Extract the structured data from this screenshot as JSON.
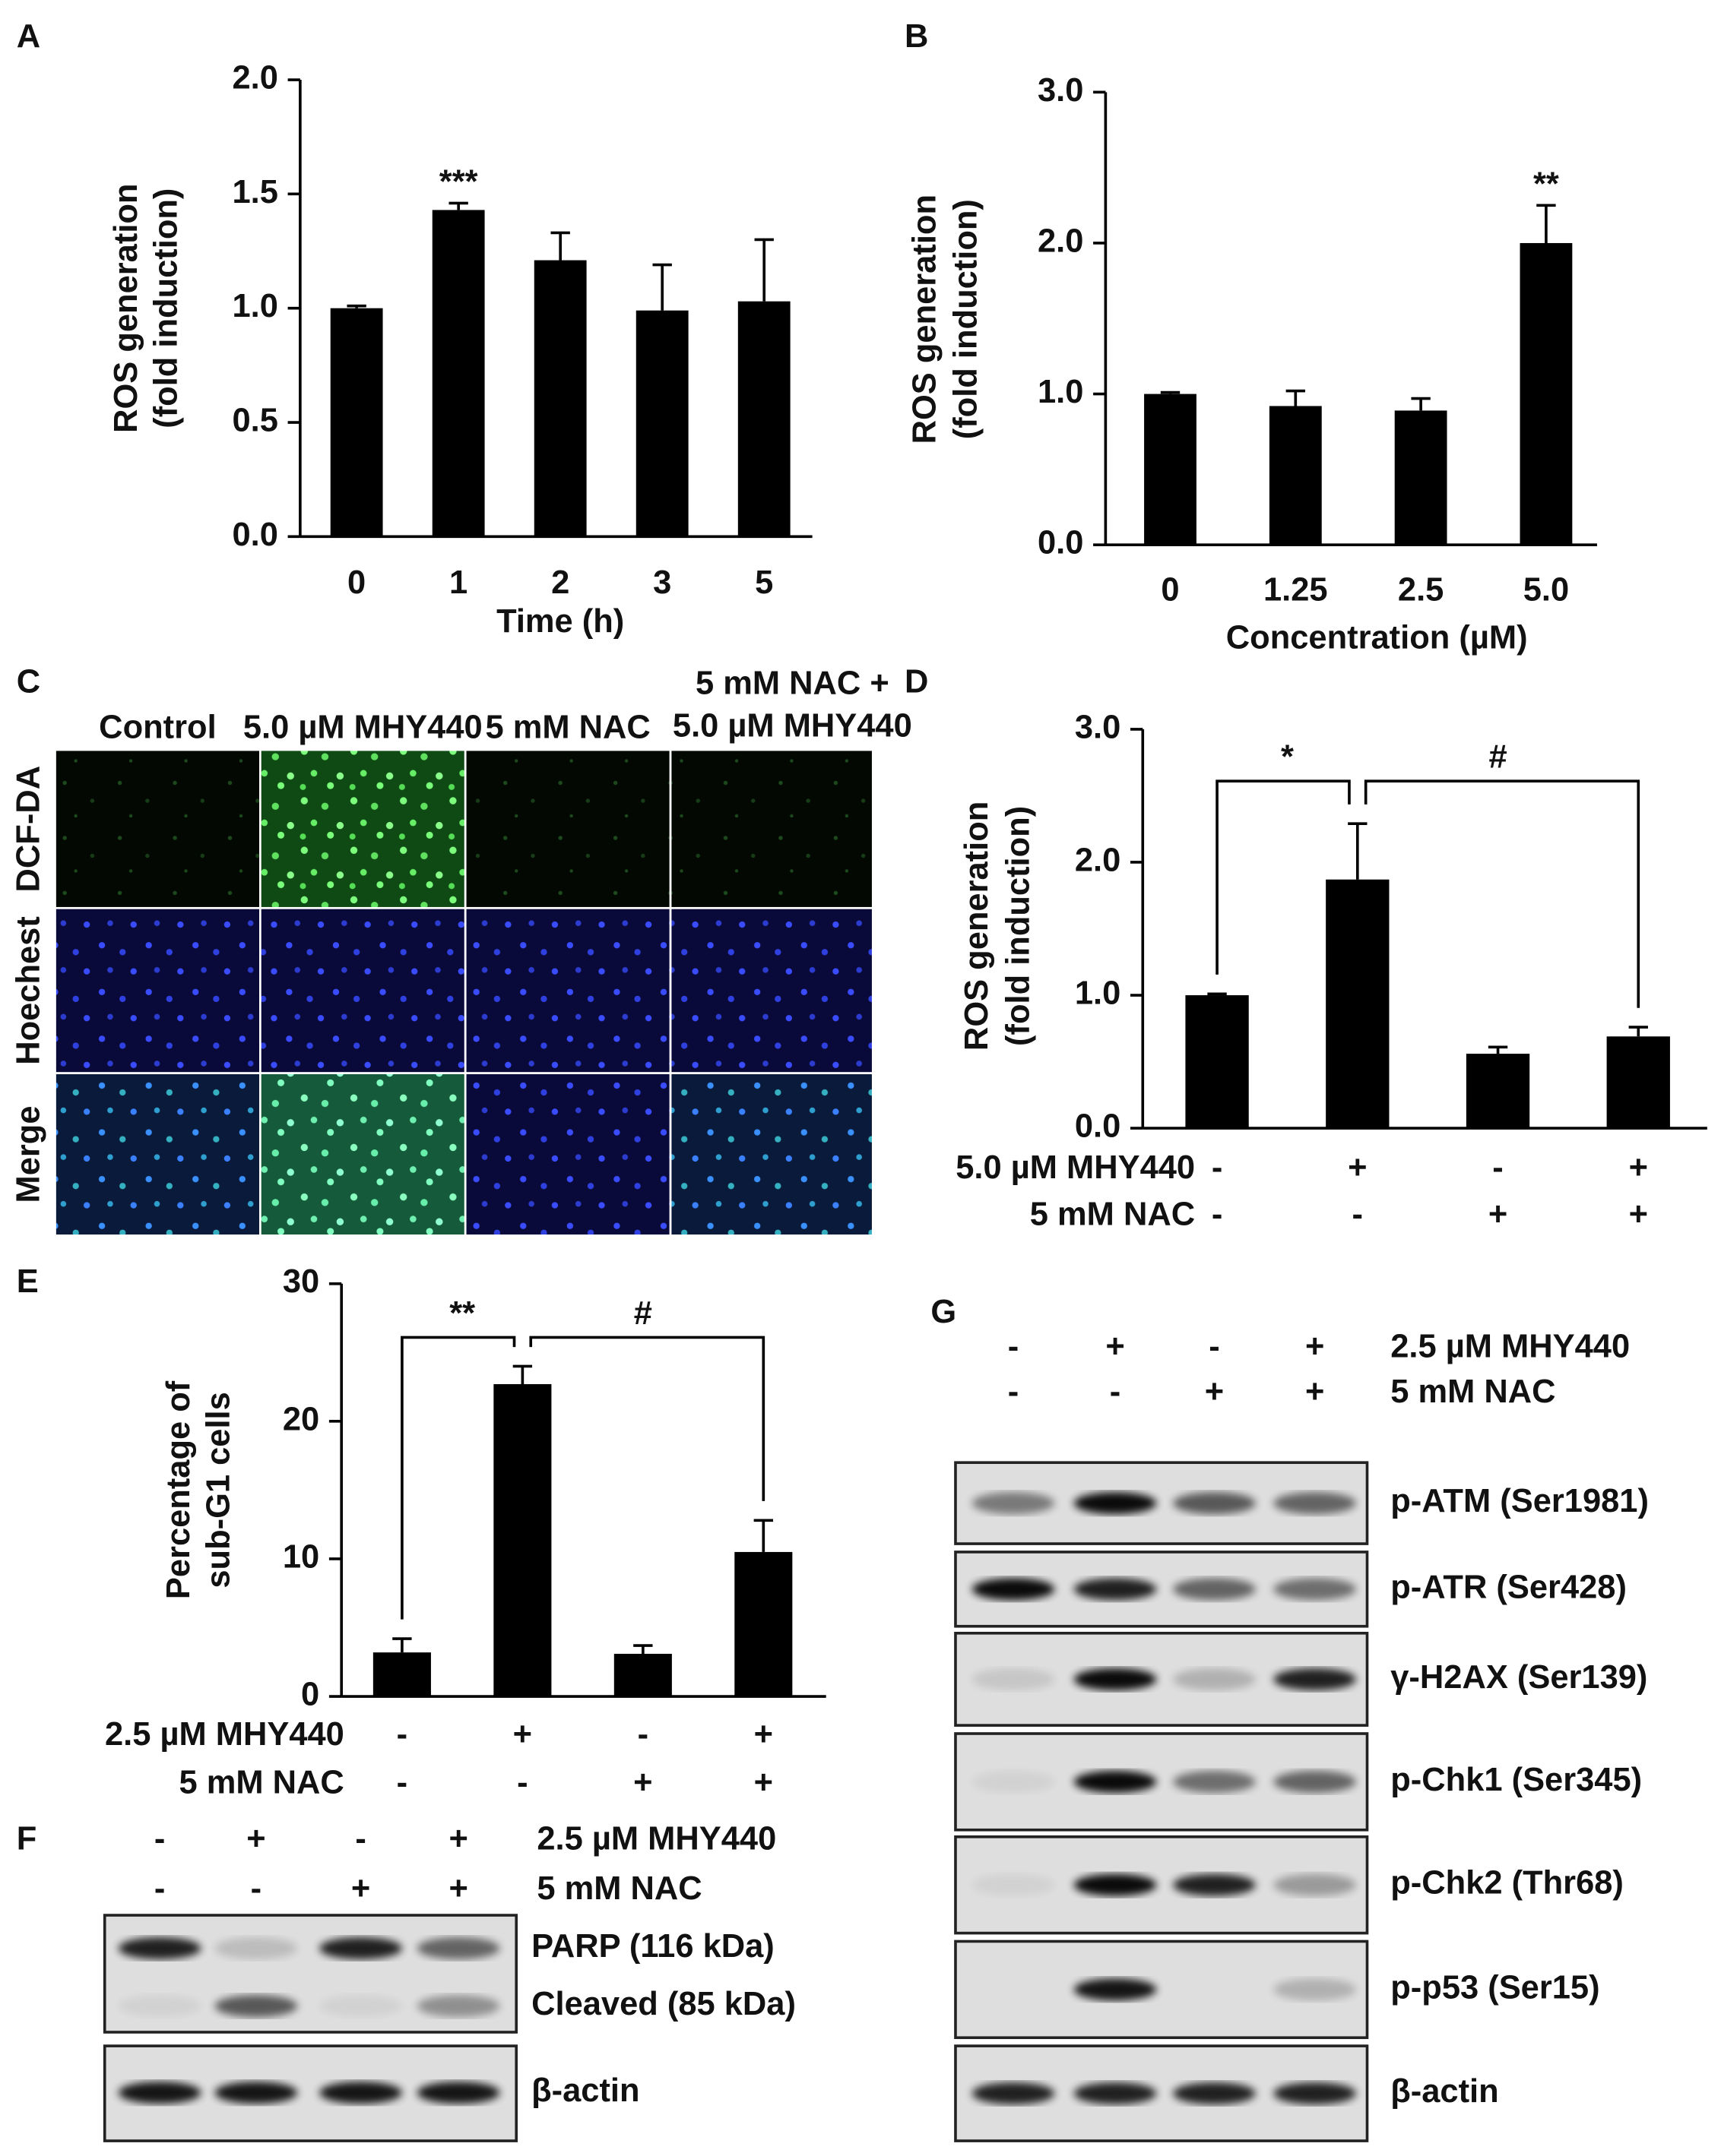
{
  "chart_data": [
    {
      "type": "bar",
      "panel": "A",
      "categories": [
        "0",
        "1",
        "2",
        "3",
        "5"
      ],
      "values": [
        1.0,
        1.43,
        1.21,
        0.99,
        1.03
      ],
      "errors": [
        0.01,
        0.03,
        0.12,
        0.2,
        0.27
      ],
      "color": "#000000",
      "xlabel": "Time (h)",
      "ylabel": [
        "ROS generation",
        "(fold induction)"
      ],
      "ylim": [
        0,
        2
      ],
      "yticks": [
        {
          "value": 0,
          "label": "0.0"
        },
        {
          "value": 0.5,
          "label": "0.5"
        },
        {
          "value": 1,
          "label": "1.0"
        },
        {
          "value": 1.5,
          "label": "1.5"
        },
        {
          "value": 2,
          "label": "2.0"
        }
      ],
      "annotations": [
        {
          "text": "***",
          "index": 1
        }
      ]
    },
    {
      "type": "bar",
      "panel": "B",
      "categories": [
        "0",
        "1.25",
        "2.5",
        "5.0"
      ],
      "values": [
        1.0,
        0.92,
        0.89,
        2.0
      ],
      "errors": [
        0.01,
        0.1,
        0.08,
        0.25
      ],
      "color": "#000000",
      "xlabel": "Concentration (µM)",
      "ylabel": [
        "ROS generation",
        "(fold induction)"
      ],
      "ylim": [
        0,
        3
      ],
      "yticks": [
        {
          "value": 0,
          "label": "0.0"
        },
        {
          "value": 1,
          "label": "1.0"
        },
        {
          "value": 2,
          "label": "2.0"
        },
        {
          "value": 3,
          "label": "3.0"
        }
      ],
      "annotations": [
        {
          "text": "**",
          "index": 3
        }
      ]
    },
    {
      "type": "bar",
      "panel": "D",
      "values": [
        1.0,
        1.87,
        0.56,
        0.69
      ],
      "errors": [
        0.01,
        0.42,
        0.05,
        0.07
      ],
      "color": "#000000",
      "ylabel": [
        "ROS generation",
        "(fold induction)"
      ],
      "ylim": [
        0,
        3
      ],
      "yticks": [
        {
          "value": 0,
          "label": "0.0"
        },
        {
          "value": 1,
          "label": "1.0"
        },
        {
          "value": 2,
          "label": "2.0"
        },
        {
          "value": 3,
          "label": "3.0"
        }
      ],
      "brackets": [
        {
          "between": [
            0,
            1
          ],
          "label": "*"
        },
        {
          "between": [
            1,
            3
          ],
          "label": "#"
        }
      ],
      "conditions": [
        {
          "label": "5.0 µM MHY440",
          "signs": [
            "-",
            "+",
            "-",
            "+"
          ]
        },
        {
          "label": "5 mM NAC",
          "signs": [
            "-",
            "-",
            "+",
            "+"
          ]
        }
      ]
    },
    {
      "type": "bar",
      "panel": "E",
      "values": [
        3.2,
        22.7,
        3.1,
        10.5
      ],
      "errors": [
        1.0,
        1.3,
        0.6,
        2.3
      ],
      "color": "#000000",
      "ylabel": [
        "Percentage of",
        "sub-G1 cells"
      ],
      "ylim": [
        0,
        30
      ],
      "yticks": [
        0,
        10,
        20,
        30
      ],
      "brackets": [
        {
          "between": [
            0,
            1
          ],
          "label": "**"
        },
        {
          "between": [
            1,
            3
          ],
          "label": "#"
        }
      ],
      "conditions": [
        {
          "label": "2.5 µM MHY440",
          "signs": [
            "-",
            "+",
            "-",
            "+"
          ]
        },
        {
          "label": "5 mM NAC",
          "signs": [
            "-",
            "-",
            "+",
            "+"
          ]
        }
      ]
    }
  ],
  "imaging": {
    "panel": "C",
    "columns": [
      "Control",
      "5.0 µM MHY440",
      "5 mM NAC",
      [
        "5 mM NAC +",
        "5.0 µM MHY440"
      ]
    ],
    "rows": [
      "DCF-DA",
      "Hoechest",
      "Merge"
    ]
  },
  "blot_f": {
    "panel": "F",
    "conditions": [
      {
        "label": "2.5 µM MHY440",
        "signs": [
          "-",
          "+",
          "-",
          "+"
        ]
      },
      {
        "label": "5 mM NAC",
        "signs": [
          "-",
          "-",
          "+",
          "+"
        ]
      }
    ],
    "bands": [
      "PARP (116 kDa)",
      "Cleaved (85 kDa)",
      "β-actin"
    ]
  },
  "blot_g": {
    "panel": "G",
    "conditions": [
      {
        "label": "2.5 µM MHY440",
        "signs": [
          "-",
          "+",
          "-",
          "+"
        ]
      },
      {
        "label": "5 mM NAC",
        "signs": [
          "-",
          "-",
          "+",
          "+"
        ]
      }
    ],
    "bands": [
      "p-ATM (Ser1981)",
      "p-ATR (Ser428)",
      "γ-H2AX (Ser139)",
      "p-Chk1 (Ser345)",
      "p-Chk2 (Thr68)",
      "p-p53 (Ser15)",
      "β-actin"
    ]
  }
}
